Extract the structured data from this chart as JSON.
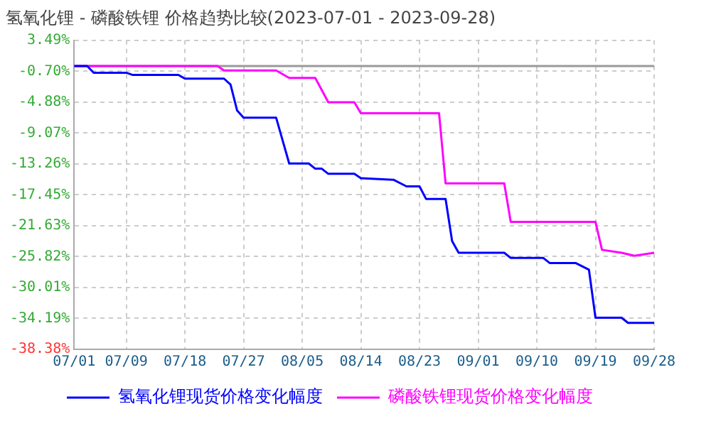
{
  "chart_data": {
    "type": "line",
    "title": "氢氧化锂 - 磷酸铁锂 价格趋势比较(2023-07-01 - 2023-09-28)",
    "series": [
      {
        "name": "氢氧化锂现货价格变化幅度",
        "color": "#0000ff",
        "x": [
          "--07-01",
          "--07-03",
          "--07-04",
          "--07-09",
          "--07-10",
          "--07-17",
          "--07-18",
          "--07-24",
          "--07-25",
          "--07-26",
          "--07-27",
          "--08-01",
          "--08-03",
          "--08-06",
          "--08-07",
          "--08-08",
          "--08-09",
          "--08-13",
          "--08-14",
          "--08-19",
          "--08-21",
          "--08-23",
          "--08-24",
          "--08-27",
          "--08-28",
          "--08-29",
          "--09-05",
          "--09-06",
          "--09-11",
          "--09-12",
          "--09-16",
          "--09-18",
          "--09-19",
          "--09-23",
          "--09-24",
          "--09-28"
        ],
        "values": [
          0,
          0,
          -0.9,
          -0.9,
          -1.2,
          -1.2,
          -1.7,
          -1.7,
          -2.5,
          -6.0,
          -7.0,
          -7.0,
          -13.2,
          -13.2,
          -13.9,
          -13.9,
          -14.6,
          -14.6,
          -15.2,
          -15.4,
          -16.3,
          -16.3,
          -18.0,
          -18.0,
          -23.7,
          -25.3,
          -25.3,
          -26.0,
          -26.0,
          -26.7,
          -26.7,
          -27.6,
          -34.1,
          -34.1,
          -34.8,
          -34.8
        ]
      },
      {
        "name": "磷酸铁锂现货价格变化幅度",
        "color": "#ff00ff",
        "x": [
          "--07-01",
          "--07-23",
          "--07-24",
          "--08-01",
          "--08-03",
          "--08-07",
          "--08-09",
          "--08-13",
          "--08-14",
          "--08-26",
          "--08-27",
          "--09-05",
          "--09-06",
          "--09-19",
          "--09-20",
          "--09-23",
          "--09-25",
          "--09-28"
        ],
        "values": [
          0,
          0,
          -0.6,
          -0.6,
          -1.6,
          -1.6,
          -4.9,
          -4.9,
          -6.4,
          -6.4,
          -15.9,
          -15.9,
          -21.1,
          -21.1,
          -24.9,
          -25.3,
          -25.7,
          -25.3
        ]
      }
    ],
    "xlim": [
      "--07-01",
      "--09-28"
    ],
    "xticks": [
      {
        "value": "--07-01",
        "label": "07/01"
      },
      {
        "value": "--07-09",
        "label": "07/09"
      },
      {
        "value": "--07-18",
        "label": "07/18"
      },
      {
        "value": "--07-27",
        "label": "07/27"
      },
      {
        "value": "--08-05",
        "label": "08/05"
      },
      {
        "value": "--08-14",
        "label": "08/14"
      },
      {
        "value": "--08-23",
        "label": "08/23"
      },
      {
        "value": "--09-01",
        "label": "09/01"
      },
      {
        "value": "--09-10",
        "label": "09/10"
      },
      {
        "value": "--09-19",
        "label": "09/19"
      },
      {
        "value": "--09-28",
        "label": "09/28"
      }
    ],
    "ylim": [
      -38.38,
      3.49
    ],
    "yticks": [
      {
        "value": 3.49,
        "label": "3.49%"
      },
      {
        "value": -0.7,
        "label": "-0.70%"
      },
      {
        "value": -4.88,
        "label": "-4.88%"
      },
      {
        "value": -9.07,
        "label": "-9.07%"
      },
      {
        "value": -13.26,
        "label": "-13.26%"
      },
      {
        "value": -17.45,
        "label": "-17.45%"
      },
      {
        "value": -21.63,
        "label": "-21.63%"
      },
      {
        "value": -25.82,
        "label": "-25.82%"
      },
      {
        "value": -30.01,
        "label": "-30.01%"
      },
      {
        "value": -34.19,
        "label": "-34.19%"
      },
      {
        "value": -38.38,
        "label": "-38.38%"
      }
    ],
    "ref_lines": [
      {
        "axis": "y",
        "value": 0,
        "color": "#999999"
      }
    ],
    "grid": true,
    "legend": "bottom",
    "marker": "none",
    "line_style": "solid"
  }
}
